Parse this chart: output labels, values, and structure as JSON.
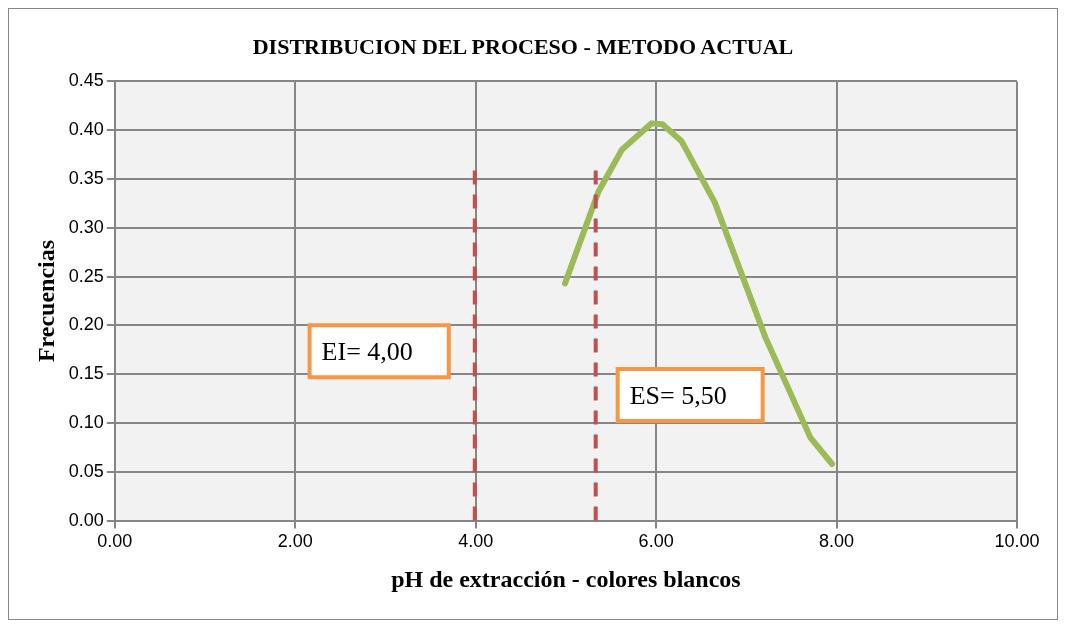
{
  "chart_data": {
    "type": "line",
    "title": "DISTRIBUCION DEL PROCESO - METODO ACTUAL",
    "xlabel": "pH de extracción - colores blancos",
    "ylabel": "Frecuencias",
    "x": [
      4.99,
      5.36,
      5.62,
      5.95,
      6.07,
      6.28,
      6.65,
      7.21,
      7.71,
      7.95
    ],
    "series": [
      {
        "color": "#9bbb59",
        "values": [
          0.243,
          0.337,
          0.38,
          0.407,
          0.406,
          0.389,
          0.326,
          0.188,
          0.085,
          0.058
        ]
      }
    ],
    "xlim": [
      0,
      10
    ],
    "xticks": [
      {
        "value": 0,
        "label": "0.00"
      },
      {
        "value": 2,
        "label": "2.00"
      },
      {
        "value": 4,
        "label": "4.00"
      },
      {
        "value": 6,
        "label": "6.00"
      },
      {
        "value": 8,
        "label": "8.00"
      },
      {
        "value": 10,
        "label": "10.00"
      }
    ],
    "ylim": [
      0,
      0.45
    ],
    "yticks": [
      {
        "value": 0,
        "label": "0.00"
      },
      {
        "value": 0.05,
        "label": "0.05"
      },
      {
        "value": 0.1,
        "label": "0.10"
      },
      {
        "value": 0.15,
        "label": "0.15"
      },
      {
        "value": 0.2,
        "label": "0.20"
      },
      {
        "value": 0.25,
        "label": "0.25"
      },
      {
        "value": 0.3,
        "label": "0.30"
      },
      {
        "value": 0.35,
        "label": "0.35"
      },
      {
        "value": 0.4,
        "label": "0.40"
      },
      {
        "value": 0.45,
        "label": "0.45"
      }
    ],
    "ref_lines": [
      {
        "axis": "x",
        "value": 3.99,
        "color": "#c0504d",
        "line_style": "dashed"
      },
      {
        "axis": "x",
        "value": 5.33,
        "color": "#c0504d",
        "line_style": "dashed"
      }
    ],
    "annotations": [
      "EI= 4,00",
      "ES= 5,50"
    ],
    "grid": true,
    "legend": false,
    "marker": "none",
    "line_style": "solid"
  }
}
